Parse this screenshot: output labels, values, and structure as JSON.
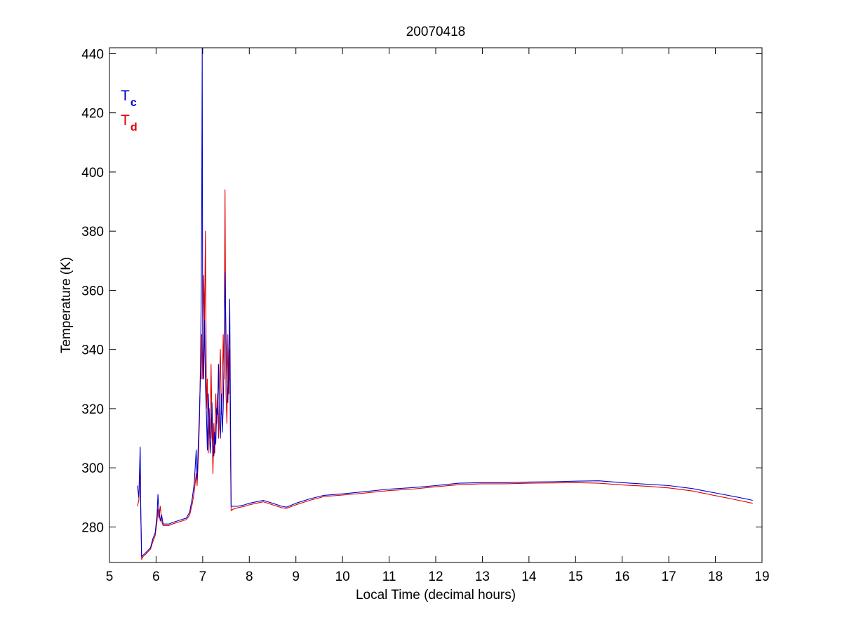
{
  "chart_data": {
    "type": "line",
    "title": "20070418",
    "xlabel": "Local Time (decimal hours)",
    "ylabel": "Temperature (K)",
    "xlim": [
      5,
      19
    ],
    "ylim": [
      268,
      442
    ],
    "xticks": [
      5,
      6,
      7,
      8,
      9,
      10,
      11,
      12,
      13,
      14,
      15,
      16,
      17,
      18,
      19
    ],
    "yticks": [
      280,
      300,
      320,
      340,
      360,
      380,
      400,
      420,
      440
    ],
    "grid": false,
    "legend_position": "top-left",
    "series": [
      {
        "name": "T",
        "subscript": "c",
        "color": "#0000cc",
        "points": [
          [
            5.6,
            294
          ],
          [
            5.63,
            290
          ],
          [
            5.66,
            307
          ],
          [
            5.67,
            287
          ],
          [
            5.69,
            270
          ],
          [
            5.72,
            270.5
          ],
          [
            5.76,
            271
          ],
          [
            5.82,
            272
          ],
          [
            5.88,
            273
          ],
          [
            5.93,
            276
          ],
          [
            5.98,
            278
          ],
          [
            6.02,
            284
          ],
          [
            6.04,
            291
          ],
          [
            6.06,
            286
          ],
          [
            6.09,
            282
          ],
          [
            6.12,
            284
          ],
          [
            6.15,
            281
          ],
          [
            6.2,
            281
          ],
          [
            6.28,
            281
          ],
          [
            6.35,
            281.5
          ],
          [
            6.45,
            282
          ],
          [
            6.55,
            282.5
          ],
          [
            6.65,
            283
          ],
          [
            6.72,
            285
          ],
          [
            6.78,
            290
          ],
          [
            6.82,
            295
          ],
          [
            6.86,
            306
          ],
          [
            6.88,
            296
          ],
          [
            6.91,
            310
          ],
          [
            6.93,
            318
          ],
          [
            6.95,
            330
          ],
          [
            6.97,
            360
          ],
          [
            6.98,
            391
          ],
          [
            6.99,
            442
          ],
          [
            7.0,
            345
          ],
          [
            7.02,
            330
          ],
          [
            7.04,
            350
          ],
          [
            7.06,
            328
          ],
          [
            7.08,
            318
          ],
          [
            7.1,
            306
          ],
          [
            7.12,
            325
          ],
          [
            7.14,
            315
          ],
          [
            7.16,
            305
          ],
          [
            7.18,
            310
          ],
          [
            7.2,
            322
          ],
          [
            7.22,
            310
          ],
          [
            7.24,
            304
          ],
          [
            7.26,
            312
          ],
          [
            7.28,
            308
          ],
          [
            7.3,
            320
          ],
          [
            7.32,
            318
          ],
          [
            7.34,
            335
          ],
          [
            7.36,
            315
          ],
          [
            7.38,
            310
          ],
          [
            7.4,
            325
          ],
          [
            7.42,
            312
          ],
          [
            7.44,
            320
          ],
          [
            7.46,
            338
          ],
          [
            7.48,
            366
          ],
          [
            7.5,
            345
          ],
          [
            7.52,
            332
          ],
          [
            7.54,
            322
          ],
          [
            7.56,
            335
          ],
          [
            7.58,
            357
          ],
          [
            7.6,
            310
          ],
          [
            7.61,
            287
          ],
          [
            7.65,
            287
          ],
          [
            7.75,
            287
          ],
          [
            7.9,
            287.5
          ],
          [
            8.0,
            288
          ],
          [
            8.15,
            288.5
          ],
          [
            8.3,
            289
          ],
          [
            8.5,
            288
          ],
          [
            8.7,
            287
          ],
          [
            8.8,
            286.7
          ],
          [
            9.0,
            288
          ],
          [
            9.3,
            289.5
          ],
          [
            9.6,
            290.7
          ],
          [
            10.0,
            291.2
          ],
          [
            10.5,
            292
          ],
          [
            11.0,
            292.8
          ],
          [
            11.5,
            293.3
          ],
          [
            12.0,
            294
          ],
          [
            12.5,
            294.8
          ],
          [
            13.0,
            295
          ],
          [
            13.5,
            295
          ],
          [
            14.0,
            295.2
          ],
          [
            14.5,
            295.3
          ],
          [
            15.0,
            295.5
          ],
          [
            15.5,
            295.6
          ],
          [
            16.0,
            295
          ],
          [
            16.5,
            294.5
          ],
          [
            17.0,
            294
          ],
          [
            17.5,
            293
          ],
          [
            18.0,
            291.5
          ],
          [
            18.5,
            290
          ],
          [
            18.8,
            289
          ]
        ]
      },
      {
        "name": "T",
        "subscript": "d",
        "color": "#e00000",
        "points": [
          [
            5.6,
            287
          ],
          [
            5.63,
            289
          ],
          [
            5.66,
            302
          ],
          [
            5.67,
            288
          ],
          [
            5.69,
            269
          ],
          [
            5.72,
            270
          ],
          [
            5.76,
            270.5
          ],
          [
            5.82,
            271.5
          ],
          [
            5.88,
            272.5
          ],
          [
            5.93,
            275
          ],
          [
            5.98,
            277
          ],
          [
            6.02,
            282
          ],
          [
            6.04,
            286
          ],
          [
            6.06,
            283
          ],
          [
            6.09,
            287
          ],
          [
            6.12,
            282
          ],
          [
            6.15,
            280.5
          ],
          [
            6.2,
            280.5
          ],
          [
            6.28,
            280.5
          ],
          [
            6.35,
            281
          ],
          [
            6.45,
            281.5
          ],
          [
            6.55,
            282
          ],
          [
            6.65,
            282.5
          ],
          [
            6.72,
            284
          ],
          [
            6.78,
            288
          ],
          [
            6.82,
            292
          ],
          [
            6.86,
            298
          ],
          [
            6.88,
            294
          ],
          [
            6.91,
            305
          ],
          [
            6.93,
            315
          ],
          [
            6.95,
            332
          ],
          [
            6.97,
            330
          ],
          [
            6.98,
            345
          ],
          [
            6.99,
            338
          ],
          [
            7.0,
            330
          ],
          [
            7.02,
            365
          ],
          [
            7.04,
            350
          ],
          [
            7.06,
            380
          ],
          [
            7.08,
            320
          ],
          [
            7.1,
            330
          ],
          [
            7.12,
            305
          ],
          [
            7.14,
            320
          ],
          [
            7.16,
            310
          ],
          [
            7.18,
            335
          ],
          [
            7.2,
            315
          ],
          [
            7.22,
            298
          ],
          [
            7.24,
            315
          ],
          [
            7.26,
            305
          ],
          [
            7.28,
            325
          ],
          [
            7.3,
            315
          ],
          [
            7.32,
            325
          ],
          [
            7.34,
            310
          ],
          [
            7.36,
            330
          ],
          [
            7.38,
            340
          ],
          [
            7.4,
            318
          ],
          [
            7.42,
            325
          ],
          [
            7.44,
            345
          ],
          [
            7.46,
            330
          ],
          [
            7.48,
            394
          ],
          [
            7.5,
            325
          ],
          [
            7.52,
            315
          ],
          [
            7.54,
            345
          ],
          [
            7.56,
            325
          ],
          [
            7.58,
            340
          ],
          [
            7.6,
            300
          ],
          [
            7.61,
            285.5
          ],
          [
            7.65,
            286
          ],
          [
            7.75,
            286.5
          ],
          [
            7.9,
            287
          ],
          [
            8.0,
            287.5
          ],
          [
            8.15,
            288
          ],
          [
            8.3,
            288.5
          ],
          [
            8.5,
            287.5
          ],
          [
            8.7,
            286.5
          ],
          [
            8.8,
            286.3
          ],
          [
            9.0,
            287.5
          ],
          [
            9.3,
            289
          ],
          [
            9.6,
            290.3
          ],
          [
            10.0,
            290.8
          ],
          [
            10.5,
            291.5
          ],
          [
            11.0,
            292.3
          ],
          [
            11.5,
            292.8
          ],
          [
            12.0,
            293.6
          ],
          [
            12.5,
            294.3
          ],
          [
            13.0,
            294.6
          ],
          [
            13.5,
            294.6
          ],
          [
            14.0,
            294.8
          ],
          [
            14.5,
            294.9
          ],
          [
            15.0,
            295
          ],
          [
            15.5,
            294.8
          ],
          [
            16.0,
            294.2
          ],
          [
            16.5,
            293.8
          ],
          [
            17.0,
            293.2
          ],
          [
            17.5,
            292.2
          ],
          [
            18.0,
            290.6
          ],
          [
            18.5,
            289
          ],
          [
            18.8,
            288
          ]
        ]
      }
    ]
  }
}
